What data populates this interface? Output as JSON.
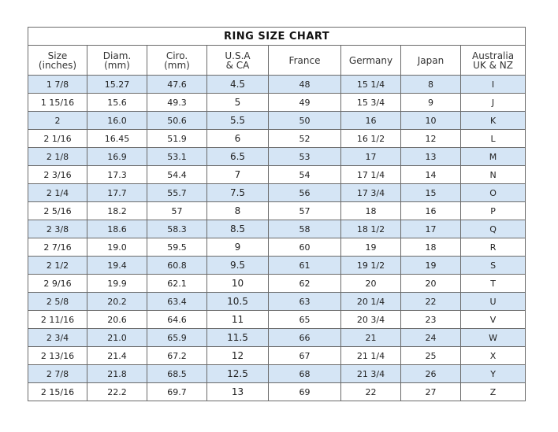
{
  "title": "RING  SIZE  CHART",
  "colors": {
    "row_alt": "#d5e5f5",
    "border": "#6a6a6a"
  },
  "headers": [
    [
      "Size",
      "(inches)"
    ],
    [
      "Diam.",
      "(mm)"
    ],
    [
      "Ciro.",
      "(mm)"
    ],
    [
      "U.S.A",
      "& CA"
    ],
    [
      "France",
      ""
    ],
    [
      "Germany",
      ""
    ],
    [
      "Japan",
      ""
    ],
    [
      "Australia",
      "UK & NZ"
    ]
  ],
  "rows": [
    [
      "1 7/8",
      "15.27",
      "47.6",
      "4.5",
      "48",
      "15 1/4",
      "8",
      "I"
    ],
    [
      "1 15/16",
      "15.6",
      "49.3",
      "5",
      "49",
      "15 3/4",
      "9",
      "J"
    ],
    [
      "2",
      "16.0",
      "50.6",
      "5.5",
      "50",
      "16",
      "10",
      "K"
    ],
    [
      "2 1/16",
      "16.45",
      "51.9",
      "6",
      "52",
      "16 1/2",
      "12",
      "L"
    ],
    [
      "2 1/8",
      "16.9",
      "53.1",
      "6.5",
      "53",
      "17",
      "13",
      "M"
    ],
    [
      "2 3/16",
      "17.3",
      "54.4",
      "7",
      "54",
      "17 1/4",
      "14",
      "N"
    ],
    [
      "2 1/4",
      "17.7",
      "55.7",
      "7.5",
      "56",
      "17 3/4",
      "15",
      "O"
    ],
    [
      "2 5/16",
      "18.2",
      "57",
      "8",
      "57",
      "18",
      "16",
      "P"
    ],
    [
      "2 3/8",
      "18.6",
      "58.3",
      "8.5",
      "58",
      "18 1/2",
      "17",
      "Q"
    ],
    [
      "2 7/16",
      "19.0",
      "59.5",
      "9",
      "60",
      "19",
      "18",
      "R"
    ],
    [
      "2 1/2",
      "19.4",
      "60.8",
      "9.5",
      "61",
      "19 1/2",
      "19",
      "S"
    ],
    [
      "2 9/16",
      "19.9",
      "62.1",
      "10",
      "62",
      "20",
      "20",
      "T"
    ],
    [
      "2 5/8",
      "20.2",
      "63.4",
      "10.5",
      "63",
      "20 1/4",
      "22",
      "U"
    ],
    [
      "2 11/16",
      "20.6",
      "64.6",
      "11",
      "65",
      "20 3/4",
      "23",
      "V"
    ],
    [
      "2 3/4",
      "21.0",
      "65.9",
      "11.5",
      "66",
      "21",
      "24",
      "W"
    ],
    [
      "2 13/16",
      "21.4",
      "67.2",
      "12",
      "67",
      "21 1/4",
      "25",
      "X"
    ],
    [
      "2 7/8",
      "21.8",
      "68.5",
      "12.5",
      "68",
      "21 3/4",
      "26",
      "Y"
    ],
    [
      "2 15/16",
      "22.2",
      "69.7",
      "13",
      "69",
      "22",
      "27",
      "Z"
    ]
  ]
}
